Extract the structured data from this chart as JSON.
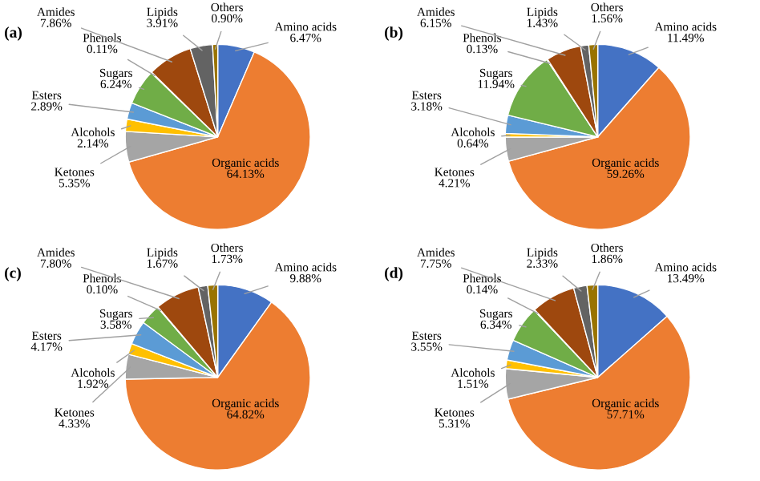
{
  "chart_data": [
    {
      "type": "pie",
      "title": "(a)",
      "categories": [
        "Amino acids",
        "Organic acids",
        "Ketones",
        "Alcohols",
        "Esters",
        "Sugars",
        "Phenols",
        "Amides",
        "Lipids",
        "Others"
      ],
      "values": [
        6.47,
        64.13,
        5.35,
        2.14,
        2.89,
        6.24,
        0.11,
        7.86,
        3.91,
        0.9
      ],
      "value_labels": [
        "6.47%",
        "64.13%",
        "5.35%",
        "2.14%",
        "2.89%",
        "6.24%",
        "0.11%",
        "7.86%",
        "3.91%",
        "0.90%"
      ],
      "colors": [
        "#4472c4",
        "#ed7d31",
        "#a5a5a5",
        "#ffc000",
        "#5b9bd5",
        "#70ad47",
        "#264478",
        "#9e480e",
        "#636363",
        "#997300"
      ]
    },
    {
      "type": "pie",
      "title": "(b)",
      "categories": [
        "Amino acids",
        "Organic acids",
        "Ketones",
        "Alcohols",
        "Esters",
        "Sugars",
        "Phenols",
        "Amides",
        "Lipids",
        "Others"
      ],
      "values": [
        11.49,
        59.26,
        4.21,
        0.64,
        3.18,
        11.94,
        0.13,
        6.15,
        1.43,
        1.56
      ],
      "value_labels": [
        "11.49%",
        "59.26%",
        "4.21%",
        "0.64%",
        "3.18%",
        "11.94%",
        "0.13%",
        "6.15%",
        "1.43%",
        "1.56%"
      ],
      "colors": [
        "#4472c4",
        "#ed7d31",
        "#a5a5a5",
        "#ffc000",
        "#5b9bd5",
        "#70ad47",
        "#264478",
        "#9e480e",
        "#636363",
        "#997300"
      ]
    },
    {
      "type": "pie",
      "title": "(c)",
      "categories": [
        "Amino acids",
        "Organic acids",
        "Ketones",
        "Alcohols",
        "Esters",
        "Sugars",
        "Phenols",
        "Amides",
        "Lipids",
        "Others"
      ],
      "values": [
        9.88,
        64.82,
        4.33,
        1.92,
        4.17,
        3.58,
        0.1,
        7.8,
        1.67,
        1.73
      ],
      "value_labels": [
        "9.88%",
        "64.82%",
        "4.33%",
        "1.92%",
        "4.17%",
        "3.58%",
        "0.10%",
        "7.80%",
        "1.67%",
        "1.73%"
      ],
      "colors": [
        "#4472c4",
        "#ed7d31",
        "#a5a5a5",
        "#ffc000",
        "#5b9bd5",
        "#70ad47",
        "#264478",
        "#9e480e",
        "#636363",
        "#997300"
      ]
    },
    {
      "type": "pie",
      "title": "(d)",
      "categories": [
        "Amino acids",
        "Organic acids",
        "Ketones",
        "Alcohols",
        "Esters",
        "Sugars",
        "Phenols",
        "Amides",
        "Lipids",
        "Others"
      ],
      "values": [
        13.49,
        57.71,
        5.31,
        1.51,
        3.55,
        6.34,
        0.14,
        7.75,
        2.33,
        1.86
      ],
      "value_labels": [
        "13.49%",
        "57.71%",
        "5.31%",
        "1.51%",
        "3.55%",
        "6.34%",
        "0.14%",
        "7.75%",
        "2.33%",
        "1.86%"
      ],
      "colors": [
        "#4472c4",
        "#ed7d31",
        "#a5a5a5",
        "#ffc000",
        "#5b9bd5",
        "#70ad47",
        "#264478",
        "#9e480e",
        "#636363",
        "#997300"
      ]
    }
  ]
}
